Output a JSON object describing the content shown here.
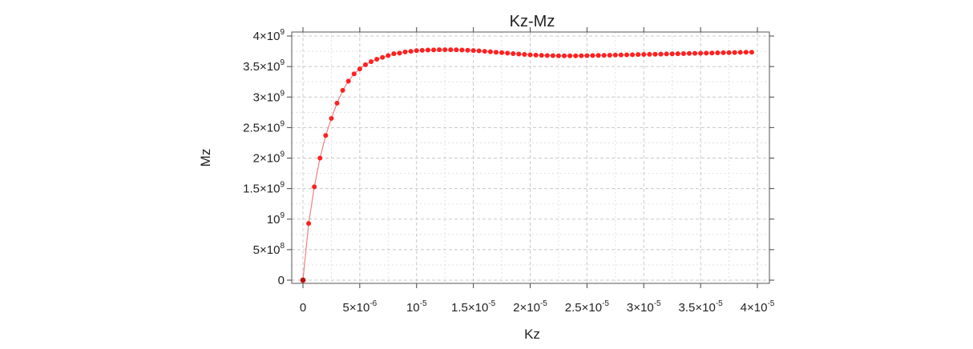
{
  "chart_data": {
    "type": "line",
    "title": "Kz-Mz",
    "xlabel": "Kz",
    "ylabel": "Mz",
    "xlim": [
      0,
      4e-05
    ],
    "ylim": [
      0,
      4000000000
    ],
    "grid": true,
    "series_color": "#ff2020",
    "line_color": "#f08080",
    "x_ticks": [
      {
        "value": 0,
        "mant": "0",
        "exp": ""
      },
      {
        "value": 5e-06,
        "mant": "5×10",
        "exp": "-6"
      },
      {
        "value": 1e-05,
        "mant": "10",
        "exp": "-5"
      },
      {
        "value": 1.5e-05,
        "mant": "1.5×10",
        "exp": "-5"
      },
      {
        "value": 2e-05,
        "mant": "2×10",
        "exp": "-5"
      },
      {
        "value": 2.5e-05,
        "mant": "2.5×10",
        "exp": "-5"
      },
      {
        "value": 3e-05,
        "mant": "3×10",
        "exp": "-5"
      },
      {
        "value": 3.5e-05,
        "mant": "3.5×10",
        "exp": "-5"
      },
      {
        "value": 4e-05,
        "mant": "4×10",
        "exp": "-5"
      }
    ],
    "y_ticks": [
      {
        "value": 0,
        "mant": "0",
        "exp": ""
      },
      {
        "value": 500000000,
        "mant": "5×10",
        "exp": "8"
      },
      {
        "value": 1000000000,
        "mant": "10",
        "exp": "9"
      },
      {
        "value": 1500000000,
        "mant": "1.5×10",
        "exp": "9"
      },
      {
        "value": 2000000000,
        "mant": "2×10",
        "exp": "9"
      },
      {
        "value": 2500000000,
        "mant": "2.5×10",
        "exp": "9"
      },
      {
        "value": 3000000000,
        "mant": "3×10",
        "exp": "9"
      },
      {
        "value": 3500000000,
        "mant": "3.5×10",
        "exp": "9"
      },
      {
        "value": 4000000000,
        "mant": "4×10",
        "exp": "9"
      }
    ],
    "series": [
      {
        "name": "Mz",
        "x": [
          0,
          5e-07,
          1e-06,
          1.5e-06,
          2e-06,
          2.5e-06,
          3e-06,
          3.5e-06,
          4e-06,
          4.5e-06,
          5e-06,
          5.5e-06,
          6e-06,
          6.5e-06,
          7e-06,
          7.5e-06,
          8e-06,
          8.5e-06,
          9e-06,
          9.5e-06,
          1e-05,
          1.05e-05,
          1.1e-05,
          1.15e-05,
          1.2e-05,
          1.25e-05,
          1.3e-05,
          1.35e-05,
          1.4e-05,
          1.45e-05,
          1.5e-05,
          1.55e-05,
          1.6e-05,
          1.65e-05,
          1.7e-05,
          1.75e-05,
          1.8e-05,
          1.85e-05,
          1.9e-05,
          1.95e-05,
          2e-05,
          2.05e-05,
          2.1e-05,
          2.15e-05,
          2.2e-05,
          2.25e-05,
          2.3e-05,
          2.35e-05,
          2.4e-05,
          2.45e-05,
          2.5e-05,
          2.55e-05,
          2.6e-05,
          2.65e-05,
          2.7e-05,
          2.75e-05,
          2.8e-05,
          2.85e-05,
          2.9e-05,
          2.95e-05,
          3e-05,
          3.05e-05,
          3.1e-05,
          3.15e-05,
          3.2e-05,
          3.25e-05,
          3.3e-05,
          3.35e-05,
          3.4e-05,
          3.45e-05,
          3.5e-05,
          3.55e-05,
          3.6e-05,
          3.65e-05,
          3.7e-05,
          3.75e-05,
          3.8e-05,
          3.85e-05,
          3.9e-05,
          3.95e-05
        ],
        "y": [
          0,
          930000000,
          1530000000,
          2000000000,
          2370000000,
          2650000000,
          2900000000,
          3110000000,
          3260000000,
          3380000000,
          3460000000,
          3530000000,
          3580000000,
          3620000000,
          3650000000,
          3680000000,
          3710000000,
          3720000000,
          3740000000,
          3750000000,
          3760000000,
          3765000000,
          3770000000,
          3772000000,
          3775000000,
          3776000000,
          3775000000,
          3773000000,
          3770000000,
          3767000000,
          3762000000,
          3757000000,
          3750000000,
          3743000000,
          3735000000,
          3728000000,
          3720000000,
          3712000000,
          3705000000,
          3698000000,
          3692000000,
          3687000000,
          3683000000,
          3680000000,
          3678000000,
          3676000000,
          3675000000,
          3675000000,
          3676000000,
          3677000000,
          3678000000,
          3680000000,
          3682000000,
          3684000000,
          3686000000,
          3688000000,
          3690000000,
          3692000000,
          3694000000,
          3696000000,
          3698000000,
          3700000000,
          3702000000,
          3704000000,
          3706000000,
          3708000000,
          3710000000,
          3712000000,
          3714000000,
          3716000000,
          3718000000,
          3720000000,
          3722000000,
          3724000000,
          3726000000,
          3728000000,
          3730000000,
          3732000000,
          3734000000,
          3735000000
        ]
      }
    ]
  }
}
